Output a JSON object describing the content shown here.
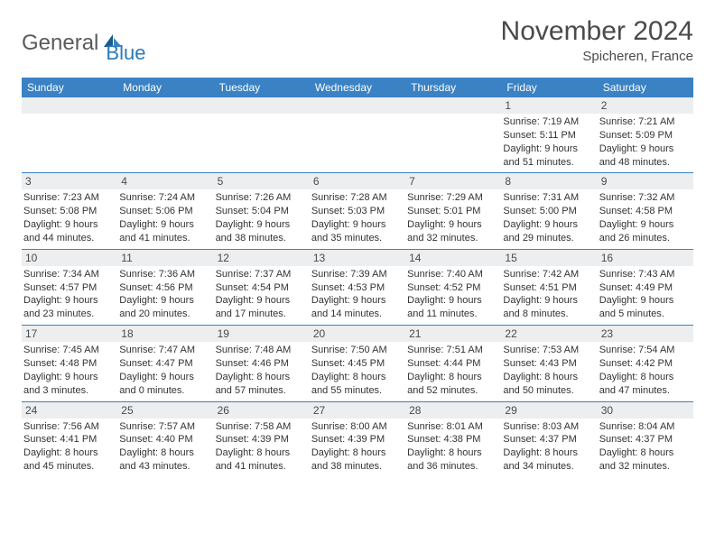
{
  "brand": {
    "main": "General",
    "sub": "Blue"
  },
  "title": "November 2024",
  "location": "Spicheren, France",
  "colors": {
    "header_bg": "#3a82c4",
    "header_fg": "#ffffff",
    "divider": "#3a82c4",
    "day_bar_bg": "#eceef0",
    "text": "#333333",
    "brand_gray": "#5a5a5a",
    "brand_blue": "#2a7ab9"
  },
  "weekdays": [
    "Sunday",
    "Monday",
    "Tuesday",
    "Wednesday",
    "Thursday",
    "Friday",
    "Saturday"
  ],
  "weeks": [
    [
      null,
      null,
      null,
      null,
      null,
      {
        "n": "1",
        "sr": "7:19 AM",
        "ss": "5:11 PM",
        "dl": "9 hours and 51 minutes."
      },
      {
        "n": "2",
        "sr": "7:21 AM",
        "ss": "5:09 PM",
        "dl": "9 hours and 48 minutes."
      }
    ],
    [
      {
        "n": "3",
        "sr": "7:23 AM",
        "ss": "5:08 PM",
        "dl": "9 hours and 44 minutes."
      },
      {
        "n": "4",
        "sr": "7:24 AM",
        "ss": "5:06 PM",
        "dl": "9 hours and 41 minutes."
      },
      {
        "n": "5",
        "sr": "7:26 AM",
        "ss": "5:04 PM",
        "dl": "9 hours and 38 minutes."
      },
      {
        "n": "6",
        "sr": "7:28 AM",
        "ss": "5:03 PM",
        "dl": "9 hours and 35 minutes."
      },
      {
        "n": "7",
        "sr": "7:29 AM",
        "ss": "5:01 PM",
        "dl": "9 hours and 32 minutes."
      },
      {
        "n": "8",
        "sr": "7:31 AM",
        "ss": "5:00 PM",
        "dl": "9 hours and 29 minutes."
      },
      {
        "n": "9",
        "sr": "7:32 AM",
        "ss": "4:58 PM",
        "dl": "9 hours and 26 minutes."
      }
    ],
    [
      {
        "n": "10",
        "sr": "7:34 AM",
        "ss": "4:57 PM",
        "dl": "9 hours and 23 minutes."
      },
      {
        "n": "11",
        "sr": "7:36 AM",
        "ss": "4:56 PM",
        "dl": "9 hours and 20 minutes."
      },
      {
        "n": "12",
        "sr": "7:37 AM",
        "ss": "4:54 PM",
        "dl": "9 hours and 17 minutes."
      },
      {
        "n": "13",
        "sr": "7:39 AM",
        "ss": "4:53 PM",
        "dl": "9 hours and 14 minutes."
      },
      {
        "n": "14",
        "sr": "7:40 AM",
        "ss": "4:52 PM",
        "dl": "9 hours and 11 minutes."
      },
      {
        "n": "15",
        "sr": "7:42 AM",
        "ss": "4:51 PM",
        "dl": "9 hours and 8 minutes."
      },
      {
        "n": "16",
        "sr": "7:43 AM",
        "ss": "4:49 PM",
        "dl": "9 hours and 5 minutes."
      }
    ],
    [
      {
        "n": "17",
        "sr": "7:45 AM",
        "ss": "4:48 PM",
        "dl": "9 hours and 3 minutes."
      },
      {
        "n": "18",
        "sr": "7:47 AM",
        "ss": "4:47 PM",
        "dl": "9 hours and 0 minutes."
      },
      {
        "n": "19",
        "sr": "7:48 AM",
        "ss": "4:46 PM",
        "dl": "8 hours and 57 minutes."
      },
      {
        "n": "20",
        "sr": "7:50 AM",
        "ss": "4:45 PM",
        "dl": "8 hours and 55 minutes."
      },
      {
        "n": "21",
        "sr": "7:51 AM",
        "ss": "4:44 PM",
        "dl": "8 hours and 52 minutes."
      },
      {
        "n": "22",
        "sr": "7:53 AM",
        "ss": "4:43 PM",
        "dl": "8 hours and 50 minutes."
      },
      {
        "n": "23",
        "sr": "7:54 AM",
        "ss": "4:42 PM",
        "dl": "8 hours and 47 minutes."
      }
    ],
    [
      {
        "n": "24",
        "sr": "7:56 AM",
        "ss": "4:41 PM",
        "dl": "8 hours and 45 minutes."
      },
      {
        "n": "25",
        "sr": "7:57 AM",
        "ss": "4:40 PM",
        "dl": "8 hours and 43 minutes."
      },
      {
        "n": "26",
        "sr": "7:58 AM",
        "ss": "4:39 PM",
        "dl": "8 hours and 41 minutes."
      },
      {
        "n": "27",
        "sr": "8:00 AM",
        "ss": "4:39 PM",
        "dl": "8 hours and 38 minutes."
      },
      {
        "n": "28",
        "sr": "8:01 AM",
        "ss": "4:38 PM",
        "dl": "8 hours and 36 minutes."
      },
      {
        "n": "29",
        "sr": "8:03 AM",
        "ss": "4:37 PM",
        "dl": "8 hours and 34 minutes."
      },
      {
        "n": "30",
        "sr": "8:04 AM",
        "ss": "4:37 PM",
        "dl": "8 hours and 32 minutes."
      }
    ]
  ],
  "labels": {
    "sunrise": "Sunrise:",
    "sunset": "Sunset:",
    "daylight": "Daylight:"
  }
}
